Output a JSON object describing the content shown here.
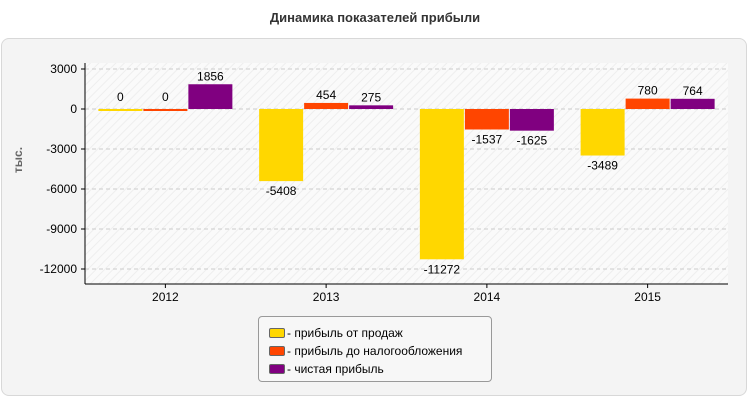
{
  "title": "Динамика показателей прибыли",
  "chart_data": {
    "type": "bar",
    "title": "Динамика показателей прибыли",
    "xlabel": "",
    "ylabel": "тыс.",
    "ylim": [
      -13000,
      3000
    ],
    "yticks": [
      3000,
      0,
      -3000,
      -6000,
      -9000,
      -12000
    ],
    "grid": true,
    "legend_position": "bottom",
    "categories": [
      "2012",
      "2013",
      "2014",
      "2015"
    ],
    "series": [
      {
        "name": "- прибыль от продаж",
        "color": "#ffd700",
        "values": [
          0,
          -5408,
          -11272,
          -3489
        ]
      },
      {
        "name": "- прибыль до налогообложения",
        "color": "#ff4500",
        "values": [
          0,
          454,
          -1537,
          780
        ]
      },
      {
        "name": "- чистая прибыль",
        "color": "#800080",
        "values": [
          1856,
          275,
          -1625,
          764
        ]
      }
    ]
  }
}
